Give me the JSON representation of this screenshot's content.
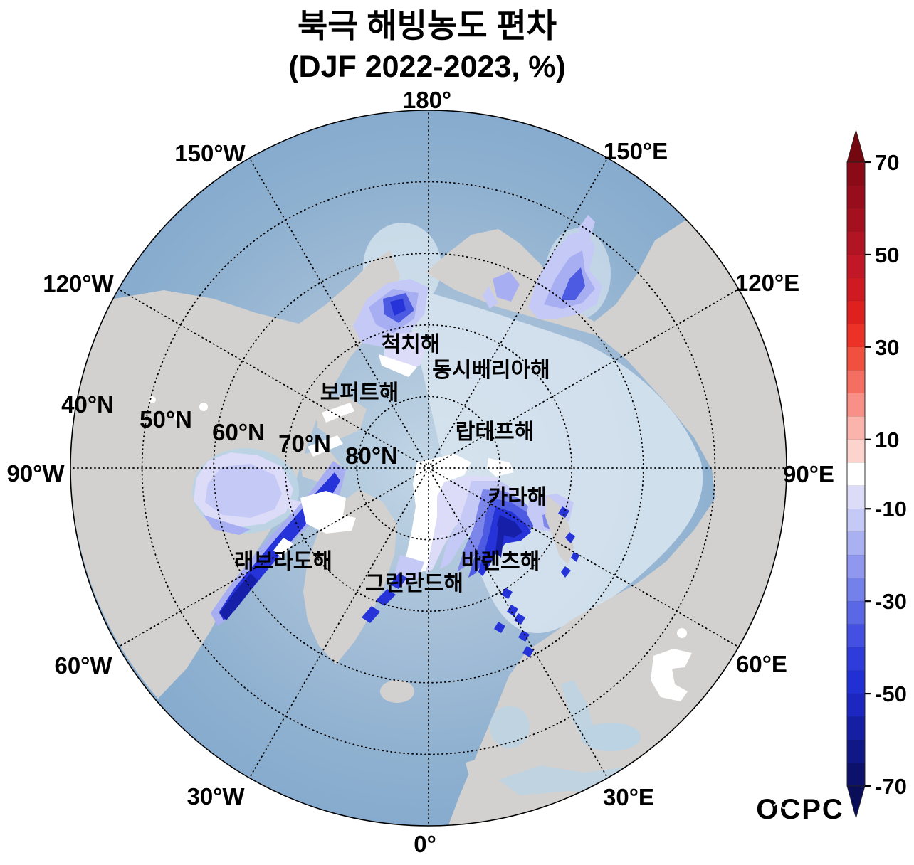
{
  "title": {
    "line1": "북극 해빙농도 편차",
    "line2": "(DJF 2022-2023, %)"
  },
  "map": {
    "lon_labels": [
      "180°",
      "150°E",
      "120°E",
      "90°E",
      "60°E",
      "30°E",
      "0°",
      "30°W",
      "60°W",
      "90°W",
      "120°W",
      "150°W"
    ],
    "lat_labels": [
      "40°N",
      "50°N",
      "60°N",
      "70°N",
      "80°N"
    ],
    "sea_labels": [
      "척치해",
      "동시베리아해",
      "보퍼트해",
      "랍테프해",
      "카라해",
      "래브라도해",
      "바렌츠해",
      "그린란드해"
    ]
  },
  "colorbar": {
    "ticks": [
      "70",
      "50",
      "30",
      "10",
      "-10",
      "-30",
      "-50",
      "-70"
    ],
    "band_colors": [
      "#8a0a17",
      "#970d1b",
      "#a5101f",
      "#b31423",
      "#c11726",
      "#cf1a22",
      "#de211f",
      "#ec3226",
      "#f2503f",
      "#f56e62",
      "#f99088",
      "#fbb4ac",
      "#fdd3cd",
      "#ffffff",
      "#dcdcf8",
      "#c5c9f6",
      "#aab1f2",
      "#8f98ee",
      "#7581ea",
      "#5b68e5",
      "#4350e1",
      "#2e3cdc",
      "#2130d4",
      "#1b27c0",
      "#151fa4",
      "#101887",
      "#0c116c"
    ],
    "arrow_top": "#730811",
    "arrow_bottom": "#0a0e58"
  },
  "logo": {
    "text": "OCPC"
  },
  "colors": {
    "land": "#d2d1cf",
    "ocean_outer": "#86abce",
    "ocean_mid": "#a6bfd8",
    "ocean_inner": "#c2d6e6",
    "arctic_pale": "#d6e3ee",
    "sea_shelf": "#bcd3e4",
    "grid": "#000000",
    "an0": "#ffffff",
    "an1": "#dcdcf8",
    "an2": "#c5c9f6",
    "an3": "#a7aef2",
    "an4": "#7d87ea",
    "an5": "#4d5ae2",
    "an6": "#2533d8",
    "an7": "#161fa8"
  },
  "chart_data": {
    "type": "heatmap",
    "title": "북극 해빙농도 편차",
    "subtitle": "(DJF 2022-2023, %)",
    "variable": "해빙농도 편차",
    "units": "%",
    "projection": "north polar stereographic, 0° at bottom, 180° at top",
    "lat_gridlines": [
      "40°N",
      "50°N",
      "60°N",
      "70°N",
      "80°N"
    ],
    "lon_gridlines": [
      "180°",
      "150°E",
      "120°E",
      "90°E",
      "60°E",
      "30°E",
      "0°",
      "30°W",
      "60°W",
      "90°W",
      "120°W",
      "150°W"
    ],
    "colorbar": {
      "min": -70,
      "max": 70,
      "tick_labels": [
        70,
        50,
        30,
        10,
        -10,
        -30,
        -50,
        -70
      ],
      "step_pct": 5,
      "white_band": [
        -5,
        5
      ],
      "scheme": "diverging blue-white-red, discrete 5% bands, arrow ends"
    },
    "regions": [
      {
        "name": "척치해",
        "anomaly_pct": -20
      },
      {
        "name": "동시베리아해",
        "anomaly_pct": -15
      },
      {
        "name": "보퍼트해",
        "anomaly_pct": 0
      },
      {
        "name": "랍테프해",
        "anomaly_pct": -5
      },
      {
        "name": "카라해",
        "anomaly_pct": -35
      },
      {
        "name": "래브라도해",
        "anomaly_pct": -25
      },
      {
        "name": "바렌츠해",
        "anomaly_pct": -45
      },
      {
        "name": "그린란드해",
        "anomaly_pct": -30
      }
    ]
  }
}
